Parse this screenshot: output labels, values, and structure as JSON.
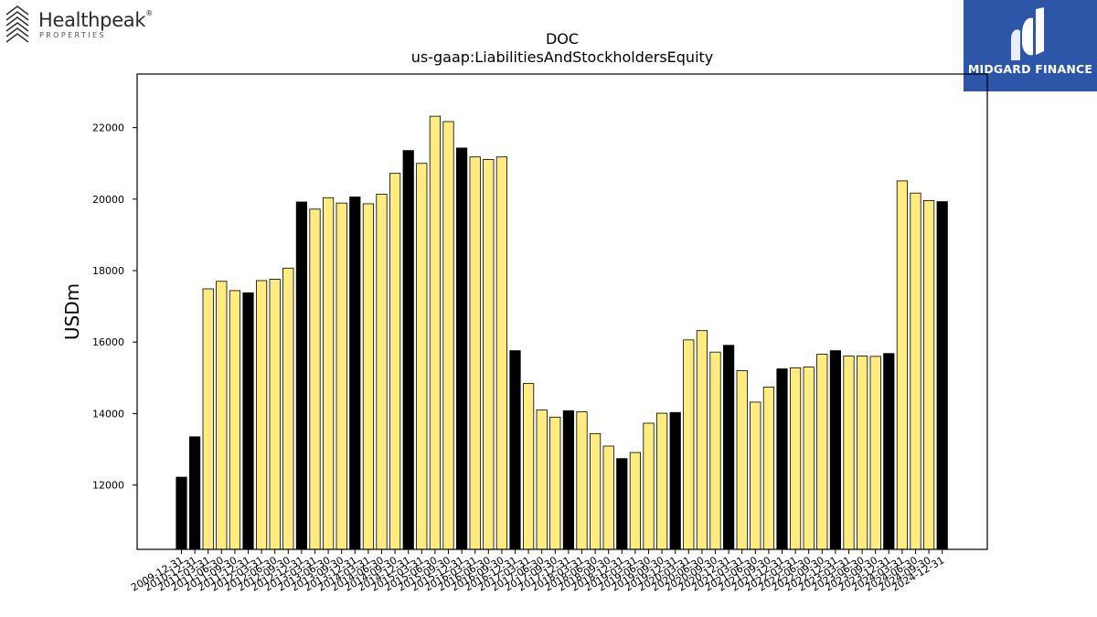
{
  "logos": {
    "left_name": "Healthpeak",
    "left_registered": "®",
    "left_sub": "PROPERTIES",
    "right_name": "MIDGARD FINANCE"
  },
  "colors": {
    "highlight_bar": "#000000",
    "normal_bar": "#ffec80",
    "bar_edge": "#000000",
    "brand_blue": "#2e56a8"
  },
  "chart_data": {
    "type": "bar",
    "title": "DOC",
    "subtitle": "us-gaap:LiabilitiesAndStockholdersEquity",
    "xlabel": "",
    "ylabel": "USDm",
    "ylim": [
      10200,
      23500
    ],
    "yticks": [
      12000,
      14000,
      16000,
      18000,
      20000,
      22000
    ],
    "grid": false,
    "legend": "none",
    "categories": [
      "2009-12-31",
      "2010-12-31",
      "2011-03-31",
      "2011-06-30",
      "2011-09-30",
      "2011-12-31",
      "2012-03-31",
      "2012-06-30",
      "2012-09-30",
      "2012-12-31",
      "2013-03-31",
      "2013-06-30",
      "2013-09-30",
      "2013-12-31",
      "2014-03-31",
      "2014-06-30",
      "2014-09-30",
      "2014-12-31",
      "2015-03-31",
      "2015-06-30",
      "2015-09-30",
      "2015-12-31",
      "2016-03-31",
      "2016-06-30",
      "2016-09-30",
      "2016-12-31",
      "2017-03-31",
      "2017-06-30",
      "2017-09-30",
      "2017-12-31",
      "2018-03-31",
      "2018-06-30",
      "2018-09-30",
      "2018-12-31",
      "2019-03-31",
      "2019-06-30",
      "2019-09-30",
      "2019-12-31",
      "2020-03-31",
      "2020-06-30",
      "2020-09-30",
      "2020-12-31",
      "2021-03-31",
      "2021-06-30",
      "2021-09-30",
      "2021-12-31",
      "2022-03-31",
      "2022-06-30",
      "2022-09-30",
      "2022-12-31",
      "2023-03-31",
      "2023-06-30",
      "2023-09-30",
      "2023-12-31",
      "2024-03-31",
      "2024-06-30",
      "2024-09-30",
      "2024-12-31"
    ],
    "values": [
      12220,
      13350,
      17490,
      17700,
      17440,
      17380,
      17720,
      17760,
      18070,
      19920,
      19720,
      20040,
      19890,
      20060,
      19870,
      20140,
      20720,
      21360,
      21000,
      22320,
      22170,
      21430,
      21180,
      21110,
      21180,
      15760,
      14840,
      14100,
      13900,
      14080,
      14050,
      13440,
      13090,
      12740,
      12910,
      13730,
      14010,
      14030,
      16060,
      16320,
      15720,
      15910,
      15200,
      14320,
      14740,
      15250,
      15280,
      15300,
      15660,
      15760,
      15610,
      15610,
      15600,
      15680,
      20510,
      20170,
      19960,
      19930
    ],
    "highlight": [
      true,
      true,
      false,
      false,
      false,
      true,
      false,
      false,
      false,
      true,
      false,
      false,
      false,
      true,
      false,
      false,
      false,
      true,
      false,
      false,
      false,
      true,
      false,
      false,
      false,
      true,
      false,
      false,
      false,
      true,
      false,
      false,
      false,
      true,
      false,
      false,
      false,
      true,
      false,
      false,
      false,
      true,
      false,
      false,
      false,
      true,
      false,
      false,
      false,
      true,
      false,
      false,
      false,
      true,
      false,
      false,
      false,
      true
    ]
  }
}
